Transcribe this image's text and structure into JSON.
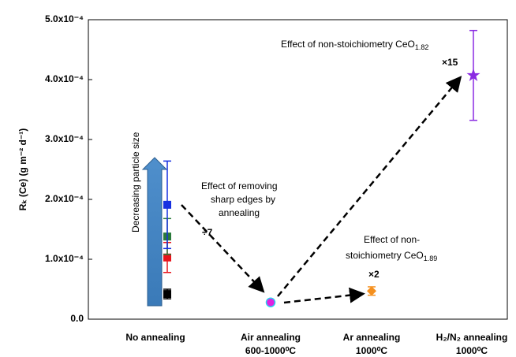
{
  "chart_data": {
    "type": "scatter",
    "y_label": "Rₖ (Ce) (g m⁻² d⁻¹)",
    "categories": [
      "No annealing",
      "Air annealing",
      "Ar annealing",
      "H₂/N₂ annealing"
    ],
    "category_notes": [
      null,
      "600-1000⁰C",
      "1000⁰C",
      "1000⁰C"
    ],
    "ylim": [
      0,
      0.0005
    ],
    "yticks": [
      {
        "value": 0,
        "label": "0.0"
      },
      {
        "value": 0.0001,
        "label": "1.0x10⁻⁴"
      },
      {
        "value": 0.0002,
        "label": "2.0x10⁻⁴"
      },
      {
        "value": 0.0003,
        "label": "3.0x10⁻⁴"
      },
      {
        "value": 0.0004,
        "label": "4.0x10⁻⁴"
      },
      {
        "value": 0.0005,
        "label": "5.0x10⁻⁴"
      }
    ],
    "series": [
      {
        "color": "#000000",
        "marker": "square",
        "values": [
          4.2e-05,
          null,
          null,
          null
        ],
        "errors": [
          8e-06,
          null,
          null,
          null
        ]
      },
      {
        "color": "#e8141c",
        "marker": "square",
        "values": [
          0.000103,
          null,
          null,
          null
        ],
        "errors": [
          2.5e-05,
          null,
          null,
          null
        ]
      },
      {
        "color": "#2a7a3a",
        "marker": "square",
        "values": [
          0.000138,
          null,
          null,
          null
        ],
        "errors": [
          3e-05,
          null,
          null,
          null
        ]
      },
      {
        "color": "#1630e0",
        "marker": "square",
        "values": [
          0.000191,
          null,
          null,
          null
        ],
        "errors": [
          7.3e-05,
          null,
          null,
          null
        ]
      },
      {
        "color": "#e020e0",
        "marker": "circle",
        "values": [
          null,
          2.8e-05,
          null,
          null
        ],
        "errors": [
          null,
          4e-06,
          null,
          null
        ]
      },
      {
        "color": "#f5901e",
        "marker": "diamond",
        "values": [
          null,
          null,
          4.7e-05,
          null
        ],
        "errors": [
          null,
          null,
          7e-06,
          null
        ]
      },
      {
        "color": "#8a2be2",
        "marker": "star",
        "values": [
          null,
          null,
          null,
          0.000407
        ],
        "errors": [
          null,
          null,
          null,
          7.5e-05
        ]
      }
    ],
    "annotations": [
      {
        "text": "Decreasing  particle size"
      },
      {
        "text": "Effect of removing"
      },
      {
        "text": "sharp edges by"
      },
      {
        "text": "annealing"
      },
      {
        "text": "÷7"
      },
      {
        "text": "Effect of non-"
      },
      {
        "text": "stoichiometry CeO",
        "subscript": "1.89"
      },
      {
        "text": "×2"
      },
      {
        "text": "Effect of non-stoichiometry CeO",
        "subscript": "1.82"
      },
      {
        "text": "×15"
      }
    ]
  }
}
